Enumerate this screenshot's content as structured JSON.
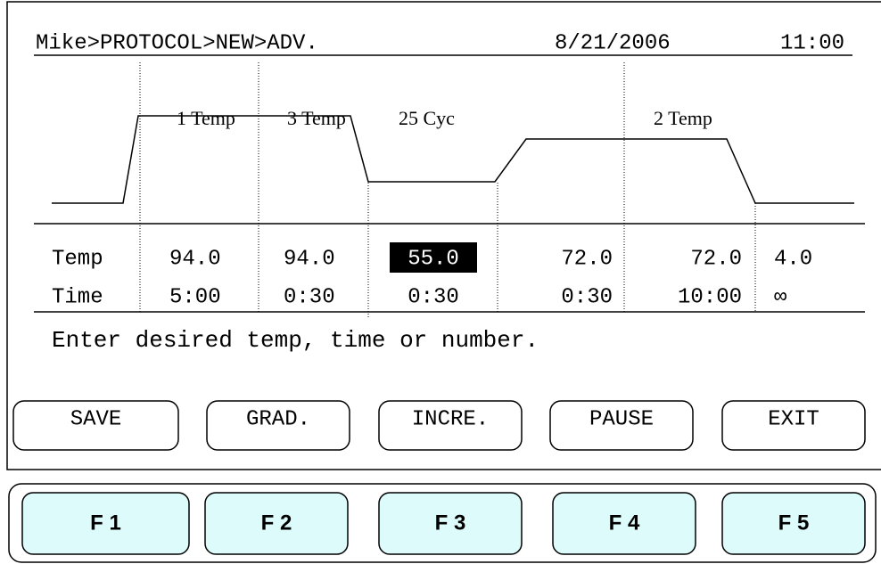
{
  "header": {
    "path": "Mike>PROTOCOL>NEW>ADV.",
    "date": "8/21/2006",
    "time": "11:00"
  },
  "stages": [
    "1 Temp",
    "3 Temp",
    "25 Cyc",
    "2 Temp"
  ],
  "table": {
    "rows": [
      [
        "Temp",
        "94.0",
        "94.0",
        "55.0",
        "72.0",
        "72.0",
        "4.0"
      ],
      [
        "Time",
        "5:00",
        "0:30",
        "0:30",
        "0:30",
        "10:00",
        "∞"
      ]
    ]
  },
  "message": "Enter desired temp, time or number.",
  "softkeys": [
    "SAVE",
    "GRAD.",
    "INCRE.",
    "PAUSE",
    "EXIT"
  ],
  "fkeys": [
    "F 1",
    "F 2",
    "F 3",
    "F 4",
    "F 5"
  ]
}
